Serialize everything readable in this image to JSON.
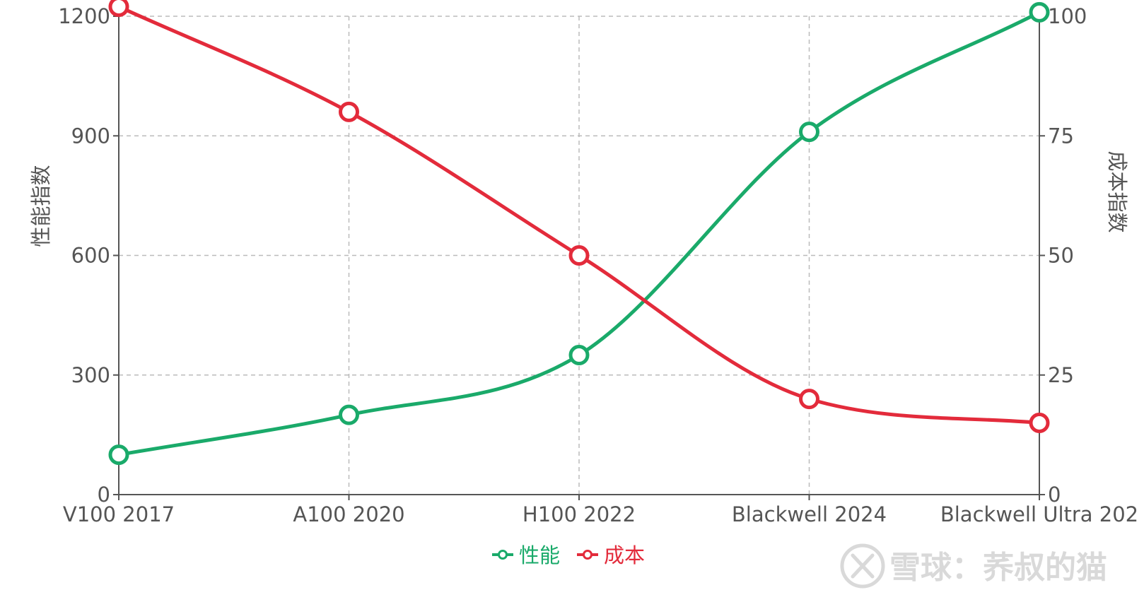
{
  "chart_data": {
    "type": "line",
    "categories": [
      "V100 2017",
      "A100 2020",
      "H100 2022",
      "Blackwell 2024",
      "Blackwell Ultra 202"
    ],
    "series": [
      {
        "name": "性能",
        "axis": "left",
        "color": "#1aaa6a",
        "values": [
          100,
          200,
          350,
          910,
          1210
        ]
      },
      {
        "name": "成本",
        "axis": "right",
        "color": "#e32b3b",
        "values": [
          102,
          80,
          50,
          20,
          15
        ]
      }
    ],
    "y_left": {
      "label": "性能指数",
      "ylim": [
        0,
        1200
      ],
      "ticks": [
        0,
        300,
        600,
        900,
        1200
      ]
    },
    "y_right": {
      "label": "成本指数",
      "ylim": [
        0,
        100
      ],
      "ticks": [
        0,
        25,
        50,
        75,
        100
      ]
    },
    "grid": true,
    "smooth": true,
    "legend_position": "bottom-center"
  },
  "colors": {
    "axis": "#555555",
    "grid": "#bbbbbb",
    "watermark": "#d9d9d9"
  },
  "watermark": {
    "text": "雪球：荞叔的猫",
    "icon": "snowball-logo"
  }
}
